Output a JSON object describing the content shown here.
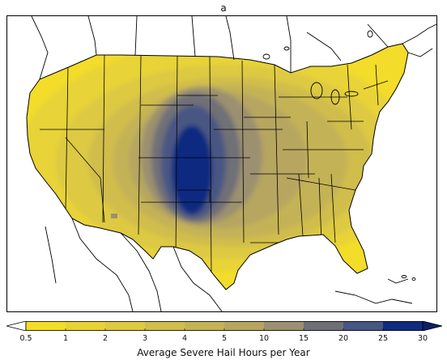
{
  "figure": {
    "panel_label": "a",
    "colorbar_label": "Average Severe Hail Hours per Year"
  },
  "colorbar": {
    "levels": [
      "0.5",
      "1",
      "2",
      "3",
      "4",
      "5",
      "10",
      "15",
      "20",
      "25",
      "30"
    ],
    "colors": [
      "#f3dc2a",
      "#e8d337",
      "#ddc942",
      "#d0bd4c",
      "#c4b256",
      "#b6a660",
      "#9b9070",
      "#6f6f77",
      "#485683",
      "#102b80"
    ],
    "extend": "both",
    "low_triangle_color": "#ffffff",
    "high_triangle_color": "#0b1f66"
  },
  "chart_data": {
    "type": "heatmap",
    "title": "a",
    "colorbar_label": "Average Severe Hail Hours per Year",
    "colorbar_levels": [
      0.5,
      1,
      2,
      3,
      4,
      5,
      10,
      15,
      20,
      25,
      30
    ],
    "region": "Contiguous United States",
    "max_region": "central High Plains (Colorado / Kansas / Nebraska / Oklahoma panhandle)"
  }
}
